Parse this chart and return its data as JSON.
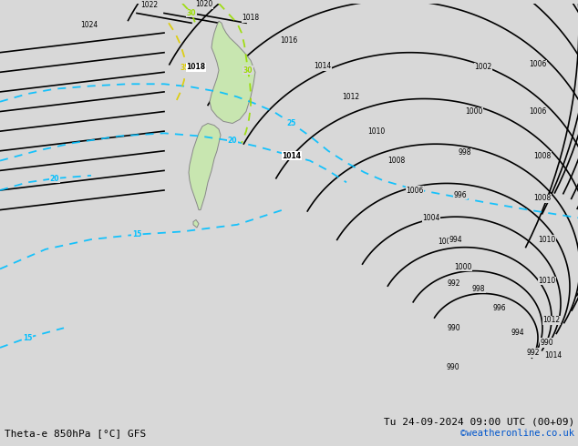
{
  "title_left": "Theta-e 850hPa [°C] GFS",
  "title_right": "Tu 24-09-2024 09:00 UTC (00+09)",
  "copyright": "©weatheronline.co.uk",
  "bg_color": "#d8d8d8",
  "map_bg": "#d8d8d8",
  "figsize": [
    6.34,
    4.9
  ],
  "dpi": 100
}
